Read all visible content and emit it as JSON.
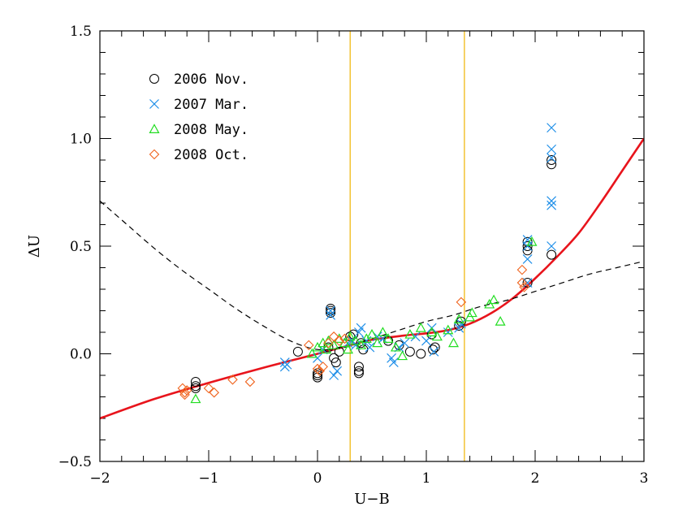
{
  "chart_data": {
    "type": "scatter",
    "title": "",
    "xlabel": "U−B",
    "ylabel": "ΔU",
    "xlim": [
      -2,
      3
    ],
    "ylim": [
      -0.5,
      1.5
    ],
    "xticks": [
      -2,
      -1,
      0,
      1,
      2,
      3
    ],
    "xtick_labels": [
      "−2",
      "−1",
      "0",
      "1",
      "2",
      "3"
    ],
    "yticks": [
      -0.5,
      0.0,
      0.5,
      1.0,
      1.5
    ],
    "ytick_labels": [
      "−0.5",
      "0.0",
      "0.5",
      "1.0",
      "1.5"
    ],
    "grid": false,
    "legend_position": "top-left",
    "vertical_lines": {
      "x": [
        0.3,
        1.35
      ],
      "color": "#f0b400"
    },
    "curves": [
      {
        "label": "",
        "style": "solid",
        "color": "#e8141c",
        "x": [
          -2.0,
          -1.5,
          -1.0,
          -0.5,
          0.0,
          0.3,
          0.5,
          0.8,
          1.0,
          1.2,
          1.4,
          1.6,
          1.8,
          2.0,
          2.2,
          2.4,
          2.6,
          2.8,
          3.0
        ],
        "y": [
          -0.3,
          -0.21,
          -0.135,
          -0.065,
          0.0,
          0.04,
          0.065,
          0.085,
          0.095,
          0.11,
          0.14,
          0.19,
          0.26,
          0.35,
          0.45,
          0.56,
          0.7,
          0.85,
          1.0
        ]
      },
      {
        "label": "",
        "style": "dashed",
        "color": "#000000",
        "x": [
          -2.0,
          -1.75,
          -1.5,
          -1.25,
          -1.0,
          -0.75,
          -0.5,
          -0.25,
          0.0,
          0.25,
          0.5,
          0.75,
          1.0,
          1.25,
          1.5,
          1.75,
          2.0,
          2.25,
          2.5,
          2.75,
          3.0
        ],
        "y": [
          0.71,
          0.6,
          0.49,
          0.39,
          0.3,
          0.21,
          0.13,
          0.06,
          0.02,
          0.03,
          0.07,
          0.11,
          0.15,
          0.18,
          0.22,
          0.25,
          0.29,
          0.33,
          0.37,
          0.4,
          0.43
        ]
      }
    ],
    "series": [
      {
        "name": "2006 Nov.",
        "marker": "circle",
        "color": "#000000",
        "points": [
          [
            -1.12,
            -0.13
          ],
          [
            -1.12,
            -0.15
          ],
          [
            -1.12,
            -0.16
          ],
          [
            -0.18,
            0.01
          ],
          [
            0.0,
            -0.09
          ],
          [
            0.0,
            -0.1
          ],
          [
            0.0,
            -0.11
          ],
          [
            0.1,
            0.03
          ],
          [
            0.12,
            0.19
          ],
          [
            0.12,
            0.2
          ],
          [
            0.12,
            0.21
          ],
          [
            0.15,
            -0.02
          ],
          [
            0.17,
            -0.04
          ],
          [
            0.2,
            0.01
          ],
          [
            0.3,
            0.08
          ],
          [
            0.33,
            0.09
          ],
          [
            0.38,
            -0.06
          ],
          [
            0.38,
            -0.08
          ],
          [
            0.38,
            -0.09
          ],
          [
            0.4,
            0.05
          ],
          [
            0.42,
            0.02
          ],
          [
            0.65,
            0.06
          ],
          [
            0.75,
            0.04
          ],
          [
            0.85,
            0.01
          ],
          [
            0.95,
            0.0
          ],
          [
            1.05,
            0.09
          ],
          [
            1.06,
            0.02
          ],
          [
            1.08,
            0.03
          ],
          [
            1.3,
            0.13
          ],
          [
            1.32,
            0.15
          ],
          [
            1.93,
            0.33
          ],
          [
            1.93,
            0.48
          ],
          [
            1.93,
            0.5
          ],
          [
            1.93,
            0.52
          ],
          [
            2.15,
            0.46
          ],
          [
            2.15,
            0.88
          ],
          [
            2.15,
            0.9
          ]
        ]
      },
      {
        "name": "2007 Mar.",
        "marker": "cross",
        "color": "#1f8fe8",
        "points": [
          [
            -0.3,
            -0.04
          ],
          [
            -0.3,
            -0.06
          ],
          [
            -0.28,
            -0.05
          ],
          [
            0.0,
            -0.02
          ],
          [
            0.05,
            0.02
          ],
          [
            0.12,
            0.18
          ],
          [
            0.12,
            0.2
          ],
          [
            0.15,
            -0.1
          ],
          [
            0.18,
            -0.08
          ],
          [
            0.28,
            0.05
          ],
          [
            0.32,
            0.06
          ],
          [
            0.35,
            0.04
          ],
          [
            0.38,
            0.1
          ],
          [
            0.4,
            0.12
          ],
          [
            0.45,
            0.06
          ],
          [
            0.48,
            0.03
          ],
          [
            0.55,
            0.08
          ],
          [
            0.6,
            0.07
          ],
          [
            0.68,
            -0.02
          ],
          [
            0.7,
            -0.04
          ],
          [
            0.75,
            0.03
          ],
          [
            0.8,
            0.05
          ],
          [
            0.9,
            0.08
          ],
          [
            1.0,
            0.06
          ],
          [
            1.05,
            0.12
          ],
          [
            1.07,
            0.01
          ],
          [
            1.2,
            0.1
          ],
          [
            1.3,
            0.12
          ],
          [
            1.32,
            0.14
          ],
          [
            1.93,
            0.33
          ],
          [
            1.93,
            0.44
          ],
          [
            1.93,
            0.5
          ],
          [
            1.93,
            0.53
          ],
          [
            2.15,
            0.5
          ],
          [
            2.15,
            0.69
          ],
          [
            2.15,
            0.71
          ],
          [
            2.15,
            0.91
          ],
          [
            2.15,
            0.95
          ],
          [
            2.15,
            1.05
          ]
        ]
      },
      {
        "name": "2008 May.",
        "marker": "triangle",
        "color": "#22dd22",
        "points": [
          [
            -1.12,
            -0.21
          ],
          [
            -0.05,
            0.0
          ],
          [
            0.0,
            0.03
          ],
          [
            0.05,
            0.05
          ],
          [
            0.08,
            0.02
          ],
          [
            0.1,
            0.06
          ],
          [
            0.15,
            0.04
          ],
          [
            0.2,
            0.07
          ],
          [
            0.25,
            0.05
          ],
          [
            0.28,
            0.02
          ],
          [
            0.3,
            0.08
          ],
          [
            0.35,
            0.06
          ],
          [
            0.4,
            0.04
          ],
          [
            0.45,
            0.07
          ],
          [
            0.5,
            0.09
          ],
          [
            0.55,
            0.05
          ],
          [
            0.6,
            0.1
          ],
          [
            0.65,
            0.07
          ],
          [
            0.72,
            0.03
          ],
          [
            0.78,
            -0.01
          ],
          [
            0.85,
            0.09
          ],
          [
            0.95,
            0.12
          ],
          [
            1.05,
            0.1
          ],
          [
            1.1,
            0.08
          ],
          [
            1.2,
            0.11
          ],
          [
            1.25,
            0.05
          ],
          [
            1.3,
            0.16
          ],
          [
            1.4,
            0.17
          ],
          [
            1.42,
            0.19
          ],
          [
            1.58,
            0.23
          ],
          [
            1.62,
            0.25
          ],
          [
            1.68,
            0.15
          ],
          [
            1.97,
            0.52
          ]
        ]
      },
      {
        "name": "2008 Oct.",
        "marker": "diamond",
        "color": "#f0641e",
        "points": [
          [
            -1.24,
            -0.16
          ],
          [
            -1.22,
            -0.18
          ],
          [
            -1.22,
            -0.19
          ],
          [
            -1.2,
            -0.17
          ],
          [
            -1.0,
            -0.16
          ],
          [
            -0.95,
            -0.18
          ],
          [
            -0.78,
            -0.12
          ],
          [
            -0.62,
            -0.13
          ],
          [
            -0.08,
            0.04
          ],
          [
            0.0,
            -0.07
          ],
          [
            0.02,
            -0.08
          ],
          [
            0.05,
            -0.06
          ],
          [
            0.1,
            0.05
          ],
          [
            0.15,
            0.08
          ],
          [
            0.2,
            0.06
          ],
          [
            0.25,
            0.07
          ],
          [
            1.32,
            0.24
          ],
          [
            1.88,
            0.39
          ],
          [
            1.88,
            0.33
          ],
          [
            1.9,
            0.31
          ]
        ]
      }
    ]
  }
}
